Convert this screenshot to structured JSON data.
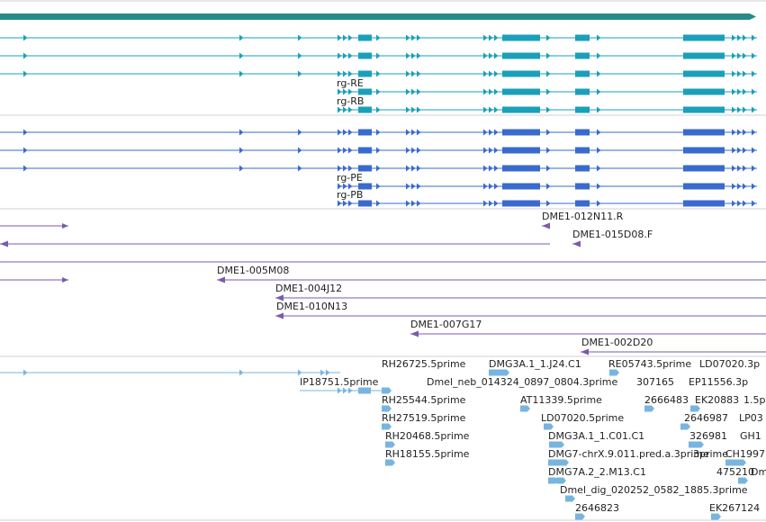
{
  "colors": {
    "gene": "#2a8a8a",
    "transcript": "#1aa0b8",
    "protein": "#3a6ad0",
    "clone": "#7a5ab0",
    "est": "#78b4e0",
    "separator": "#d0d0d0"
  },
  "tracks": {
    "transcripts": [
      {
        "label": ""
      },
      {
        "label": ""
      },
      {
        "label": ""
      },
      {
        "label": "rg-RE"
      },
      {
        "label": "rg-RB"
      }
    ],
    "proteins": [
      {
        "label": ""
      },
      {
        "label": ""
      },
      {
        "label": ""
      },
      {
        "label": "rg-PE"
      },
      {
        "label": "rg-PB"
      }
    ],
    "clones": [
      {
        "label": ""
      },
      {
        "label": "DME1-012N11.R"
      },
      {
        "label": "DME1-015D08.F"
      },
      {
        "label": ""
      },
      {
        "label": "DME1-005M08"
      },
      {
        "label": "DME1-004J12"
      },
      {
        "label": "DME1-010N13"
      },
      {
        "label": "DME1-007G17"
      },
      {
        "label": "DME1-002D20"
      }
    ],
    "ests": [
      "IP18751.5prime",
      "RH26725.5prime",
      "RH25544.5prime",
      "RH27519.5prime",
      "RH20468.5prime",
      "RH18155.5prime",
      "DMG3A.1_1.J24.C1",
      "Dmel_neb_014324_0897_0804.3prime",
      "AT11339.5prime",
      "LD07020.5prime",
      "DMG3A.1_1.C01.C1",
      "DMG7-chrX.9.011.pred.a.3prime",
      "DMG7A.2_2.M13.C1",
      "Dmel_dig_020252_0582_1885.3prime",
      "2646823",
      "RE05743.5prime",
      "LD07020.3p",
      "307165",
      "EP11556.3p",
      "2666483",
      "EK20883",
      "1.5p",
      "2646987",
      "LP03",
      "326981",
      "GH1",
      "3prime",
      "CH1997",
      "475210",
      "Dm",
      "EK267124"
    ]
  }
}
